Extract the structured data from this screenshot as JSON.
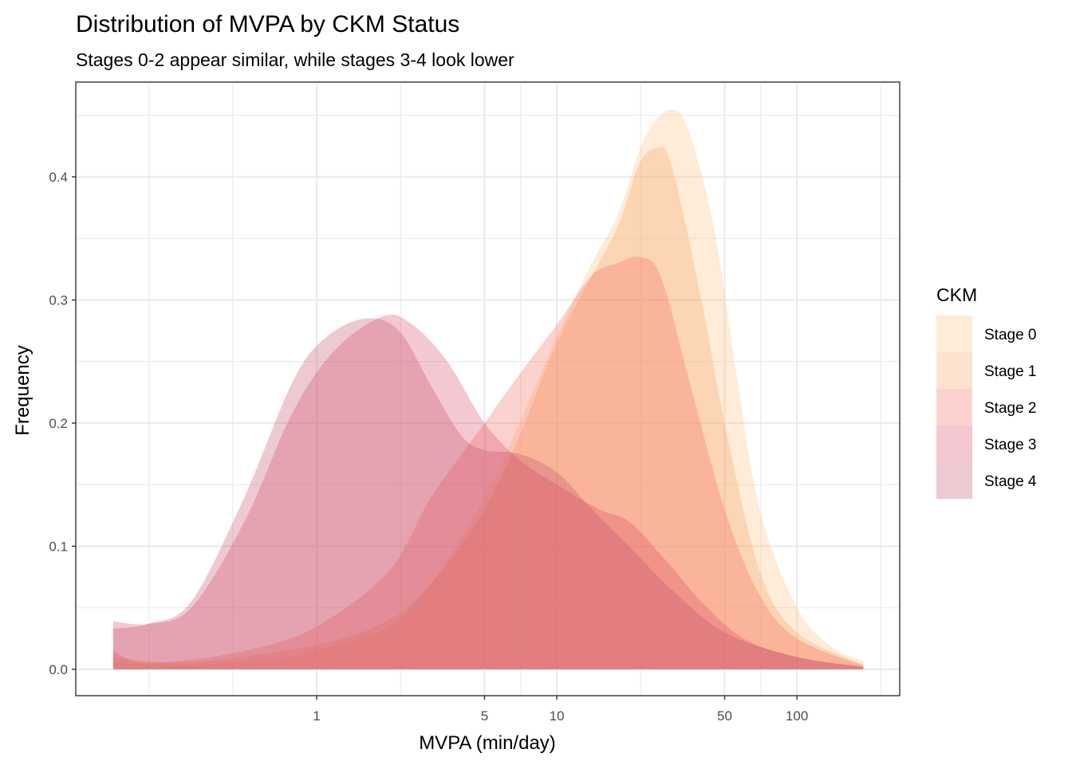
{
  "chart_data": {
    "type": "area",
    "subtype": "density",
    "title": "Distribution of MVPA by CKM Status",
    "subtitle": "Stages 0-2 appear similar, while stages 3-4 look lower",
    "xlabel": "MVPA (min/day)",
    "ylabel": "Frequency",
    "x_scale": "log10",
    "xlim": [
      0.0992,
      268
    ],
    "ylim": [
      -0.0214,
      0.477
    ],
    "x_ticks": [
      1,
      5,
      10,
      50,
      100
    ],
    "x_tick_labels": [
      "1",
      "5",
      "10",
      "50",
      "100"
    ],
    "x_minor_grid": [
      0.2,
      0.447,
      2.236,
      7.071,
      22.36,
      70.71,
      223.6
    ],
    "y_ticks": [
      0.0,
      0.1,
      0.2,
      0.3,
      0.4
    ],
    "y_tick_labels": [
      "0.0",
      "0.1",
      "0.2",
      "0.3",
      "0.4"
    ],
    "y_minor_grid": [
      0.05,
      0.15,
      0.25,
      0.35,
      0.45
    ],
    "grid": true,
    "legend": {
      "title": "CKM",
      "position": "right"
    },
    "fill_alpha": 0.3,
    "series": [
      {
        "name": "Stage 0",
        "color": "#fbbf80",
        "x": [
          0.142,
          0.3,
          0.6,
          1,
          2,
          3,
          5,
          7,
          10,
          14,
          18,
          23,
          29,
          35,
          45,
          55,
          70,
          100,
          140,
          189
        ],
        "y": [
          0.006,
          0.004,
          0.008,
          0.015,
          0.035,
          0.07,
          0.14,
          0.2,
          0.27,
          0.33,
          0.37,
          0.43,
          0.454,
          0.44,
          0.36,
          0.25,
          0.13,
          0.05,
          0.018,
          0.007
        ]
      },
      {
        "name": "Stage 1",
        "color": "#f79e62",
        "x": [
          0.142,
          0.3,
          1,
          2,
          3,
          5,
          7,
          10,
          14,
          18,
          22,
          26,
          30,
          40,
          50,
          70,
          100,
          189
        ],
        "y": [
          0.01,
          0.006,
          0.02,
          0.04,
          0.07,
          0.13,
          0.19,
          0.265,
          0.32,
          0.36,
          0.41,
          0.423,
          0.41,
          0.3,
          0.2,
          0.08,
          0.03,
          0.004
        ]
      },
      {
        "name": "Stage 2",
        "color": "#f46a5c",
        "x": [
          0.142,
          0.2,
          0.5,
          1,
          2,
          3,
          5,
          7,
          10,
          14,
          18,
          22,
          27,
          35,
          50,
          70,
          100,
          189
        ],
        "y": [
          0.015,
          0.005,
          0.015,
          0.035,
          0.08,
          0.14,
          0.2,
          0.24,
          0.28,
          0.32,
          0.33,
          0.335,
          0.32,
          0.24,
          0.13,
          0.06,
          0.025,
          0.003
        ]
      },
      {
        "name": "Stage 3",
        "color": "#dc4a64",
        "x": [
          0.142,
          0.2,
          0.3,
          0.5,
          0.8,
          1.2,
          1.9,
          2.5,
          3.5,
          5,
          7,
          10,
          15,
          20,
          28,
          40,
          60,
          100,
          189
        ],
        "y": [
          0.039,
          0.037,
          0.05,
          0.12,
          0.21,
          0.26,
          0.287,
          0.28,
          0.25,
          0.2,
          0.17,
          0.15,
          0.13,
          0.12,
          0.09,
          0.055,
          0.025,
          0.01,
          0.002
        ]
      },
      {
        "name": "Stage 4",
        "color": "#c2506a",
        "x": [
          0.142,
          0.2,
          0.3,
          0.5,
          0.8,
          1.1,
          1.6,
          2.2,
          3,
          4,
          5,
          7,
          10,
          14,
          20,
          30,
          50,
          100,
          189
        ],
        "y": [
          0.033,
          0.037,
          0.055,
          0.14,
          0.235,
          0.27,
          0.285,
          0.275,
          0.23,
          0.19,
          0.178,
          0.175,
          0.16,
          0.13,
          0.1,
          0.065,
          0.03,
          0.01,
          0.002
        ]
      }
    ]
  }
}
